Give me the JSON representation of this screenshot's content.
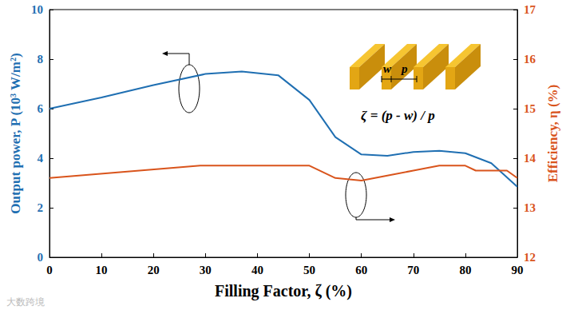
{
  "chart_data": {
    "type": "line",
    "xlabel": "Filling Factor, ζ (%)",
    "ylabel": "Output power, P (10³ W/m²)",
    "y2label": "Efficiency, η (%)",
    "xlim": [
      0,
      90
    ],
    "xticks": [
      0,
      10,
      20,
      30,
      40,
      50,
      60,
      70,
      80,
      90
    ],
    "ylim": [
      0,
      10
    ],
    "yticks": [
      0,
      2,
      4,
      6,
      8,
      10
    ],
    "y2lim": [
      12,
      17
    ],
    "y2ticks": [
      12,
      13,
      14,
      15,
      16,
      17
    ],
    "grid": false,
    "marker": "none",
    "series": [
      {
        "color": "#1f6fb2",
        "x": [
          0,
          10,
          20,
          30,
          37,
          44,
          50,
          55,
          60,
          65,
          70,
          75,
          80,
          85,
          90
        ],
        "values": [
          6.0,
          6.45,
          6.95,
          7.4,
          7.5,
          7.35,
          6.35,
          4.85,
          4.15,
          4.1,
          4.25,
          4.3,
          4.2,
          3.8,
          2.85
        ]
      },
      {
        "color": "#d9541c",
        "axis": "y2",
        "x": [
          0,
          29,
          50,
          55,
          60,
          65,
          70,
          75,
          80,
          82,
          88,
          90
        ],
        "values": [
          13.6,
          13.85,
          13.85,
          13.6,
          13.55,
          13.65,
          13.75,
          13.85,
          13.85,
          13.75,
          13.75,
          13.6
        ]
      }
    ],
    "annotations": {
      "w": "w",
      "p": "p",
      "formula": "ζ = (p - w) / p",
      "watermark": "大数跨境"
    }
  }
}
